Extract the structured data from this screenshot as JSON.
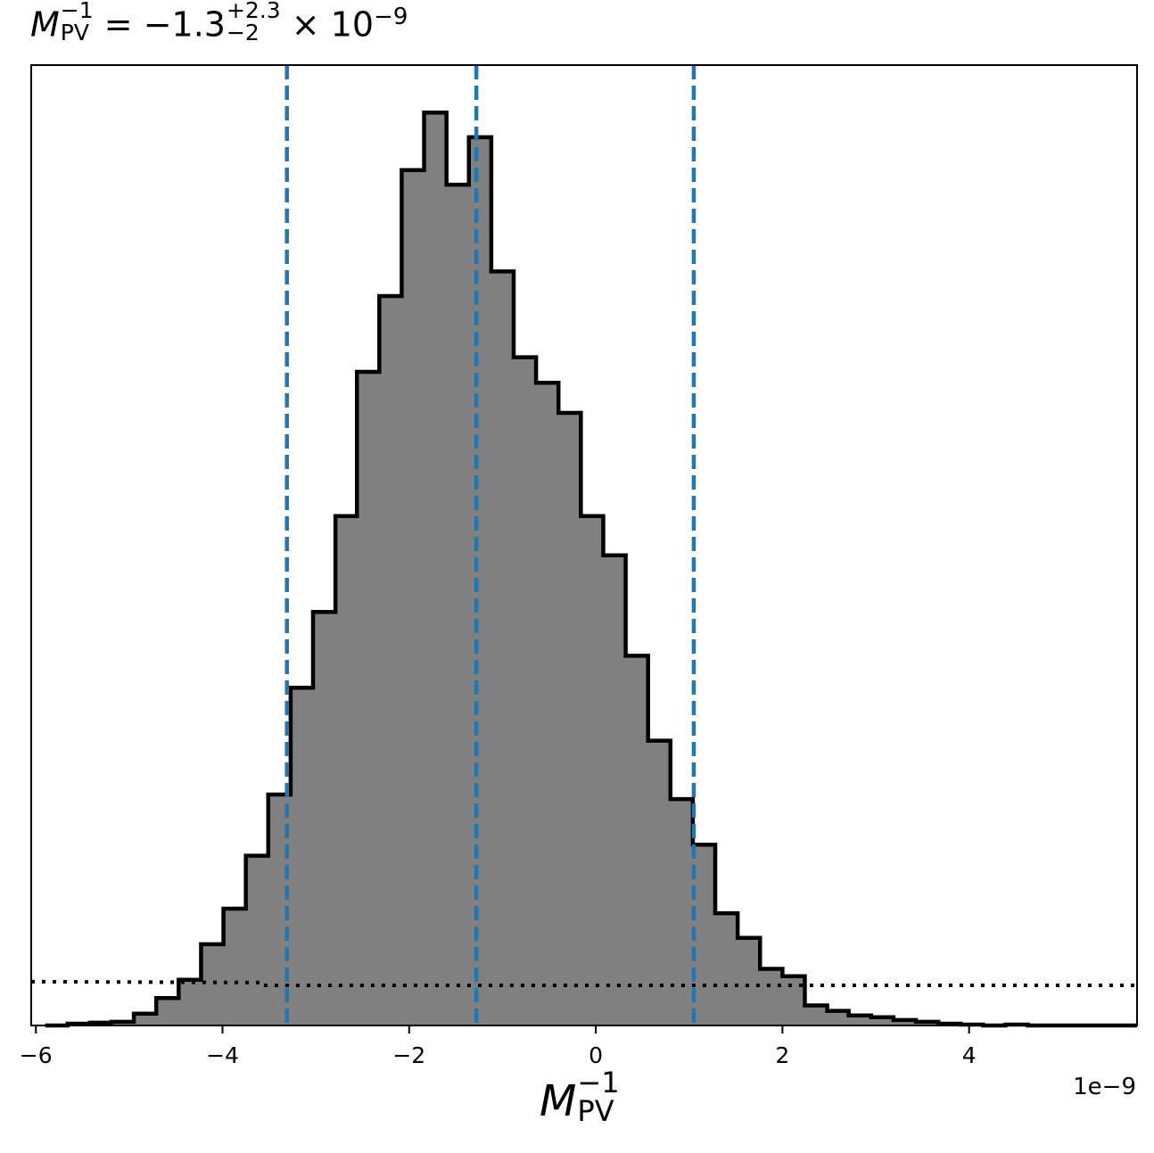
{
  "chart_data": {
    "type": "histogram",
    "title": {
      "symbol": "M",
      "superscript": "−1",
      "subscript": "PV",
      "equals": "=",
      "median": "−1.3",
      "upper_err": "+2.3",
      "lower_err": "−2",
      "times": "×",
      "base": "10",
      "exponent": "−9"
    },
    "xlabel": {
      "symbol": "M",
      "superscript": "−1",
      "subscript": "PV"
    },
    "x_offset_label": "1e−9",
    "x_unit_scale": 1e-09,
    "xlim": [
      -6.05,
      5.8
    ],
    "ylim": [
      0,
      1.052
    ],
    "xticks": [
      -6,
      -4,
      -2,
      0,
      2,
      4
    ],
    "xtick_labels": [
      "−6",
      "−4",
      "−2",
      "0",
      "2",
      "4"
    ],
    "bin_edges": [
      -5.9,
      -5.66,
      -5.42,
      -5.19,
      -4.95,
      -4.71,
      -4.47,
      -4.23,
      -3.99,
      -3.75,
      -3.51,
      -3.27,
      -3.03,
      -2.79,
      -2.56,
      -2.32,
      -2.08,
      -1.84,
      -1.6,
      -1.36,
      -1.12,
      -0.88,
      -0.64,
      -0.4,
      -0.16,
      0.08,
      0.32,
      0.56,
      0.8,
      1.04,
      1.28,
      1.52,
      1.76,
      2.0,
      2.24,
      2.48,
      2.71,
      2.95,
      3.19,
      3.43,
      3.67,
      3.91,
      4.15,
      4.39,
      4.63,
      4.87,
      5.11,
      5.35,
      5.59,
      5.8
    ],
    "counts": [
      0.0,
      0.002,
      0.003,
      0.004,
      0.013,
      0.03,
      0.05,
      0.089,
      0.128,
      0.186,
      0.253,
      0.37,
      0.453,
      0.558,
      0.716,
      0.799,
      0.937,
      1.0,
      0.921,
      0.973,
      0.826,
      0.732,
      0.704,
      0.671,
      0.558,
      0.515,
      0.405,
      0.312,
      0.248,
      0.198,
      0.123,
      0.096,
      0.062,
      0.054,
      0.022,
      0.016,
      0.011,
      0.009,
      0.006,
      0.004,
      0.002,
      0.001,
      0.0,
      0.001,
      0.0,
      0.0,
      0.0,
      0.0,
      0.0
    ],
    "fill_color": "#808080",
    "edge_color": "#000000",
    "quantile_lines": {
      "values": [
        -3.31,
        -1.28,
        1.05
      ],
      "color": "#1f77b4",
      "style": "dashed"
    },
    "prior_line": {
      "style": "dotted",
      "color": "#000000",
      "x": [
        -6.05,
        -3.6,
        -3.6,
        5.8
      ],
      "y": [
        0.048,
        0.047,
        0.044,
        0.044
      ]
    },
    "grid": false,
    "legend": "none"
  }
}
